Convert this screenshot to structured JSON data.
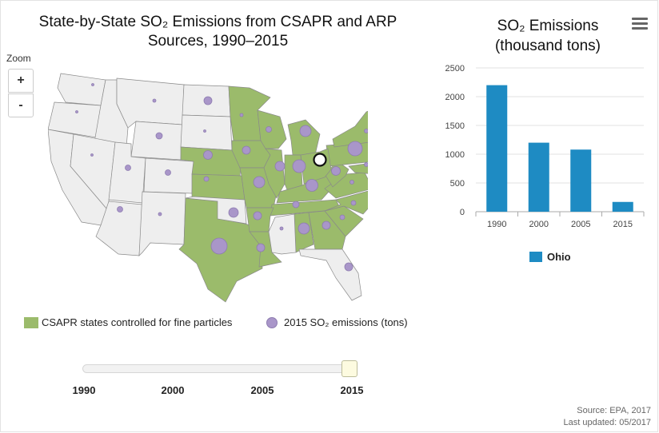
{
  "map": {
    "title_line1": "State-by-State SO₂ Emissions from CSAPR and ARP",
    "title_line2": "Sources, 1990–2015",
    "zoom_label": "Zoom",
    "zoom_in": "+",
    "zoom_out": "-",
    "highlighted_state": "Ohio",
    "legend": {
      "csapr_label": "CSAPR states controlled for fine particles",
      "emissions_label": "2015 SO₂ emissions (tons)"
    },
    "colors": {
      "csapr": "#9bbb6b",
      "other": "#eeeeee",
      "bubble": "#a996c9",
      "border": "#888888"
    }
  },
  "slider": {
    "ticks": [
      "1990",
      "2000",
      "2005",
      "2015"
    ],
    "selected": "2015"
  },
  "chart_data": {
    "type": "bar",
    "title_line1": "SO₂ Emissions",
    "title_line2": "(thousand tons)",
    "categories": [
      "1990",
      "2000",
      "2005",
      "2015"
    ],
    "series": [
      {
        "name": "Ohio",
        "values": [
          2200,
          1200,
          1080,
          170
        ],
        "color": "#1e8bc3"
      }
    ],
    "yticks": [
      "0",
      "500",
      "1000",
      "1500",
      "2000",
      "2500"
    ],
    "ylim": [
      0,
      2500
    ],
    "xlabel": "",
    "ylabel": ""
  },
  "footer": {
    "source": "Source: EPA, 2017",
    "updated": "Last updated: 05/2017"
  }
}
